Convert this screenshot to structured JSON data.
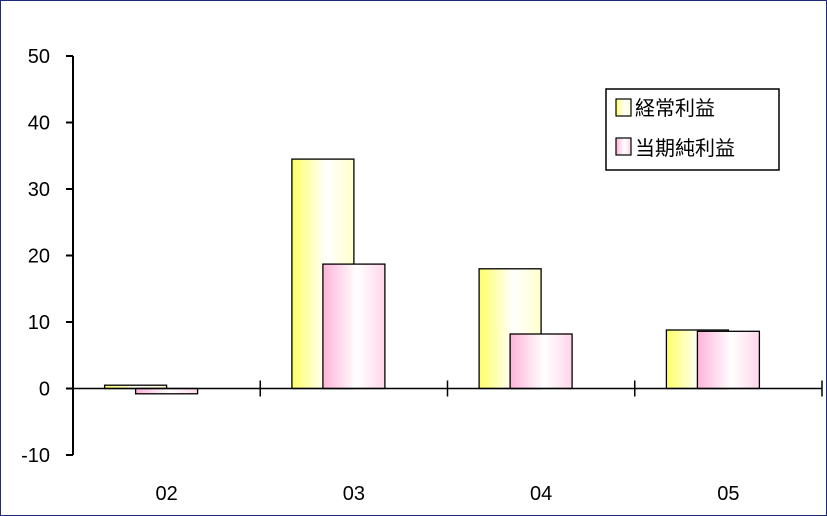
{
  "chart_data": {
    "type": "bar",
    "categories": [
      "02",
      "03",
      "04",
      "05"
    ],
    "series": [
      {
        "name": "経常利益",
        "values": [
          0.5,
          34.5,
          18.0,
          8.8
        ],
        "color_light": "#ffffff",
        "color_dark": "#ffff66"
      },
      {
        "name": "当期純利益",
        "values": [
          -0.8,
          18.7,
          8.2,
          8.6
        ],
        "color_light": "#ffffff",
        "color_dark": "#ffb3d9"
      }
    ],
    "ylim": [
      -10,
      50
    ],
    "yticks": [
      -10,
      0,
      10,
      20,
      30,
      40,
      50
    ],
    "ytick_labels": [
      "-10",
      "0",
      "10",
      "20",
      "30",
      "40",
      "50"
    ],
    "title": "",
    "xlabel": "",
    "ylabel": "",
    "grid": false,
    "legend_position": "top-right"
  }
}
